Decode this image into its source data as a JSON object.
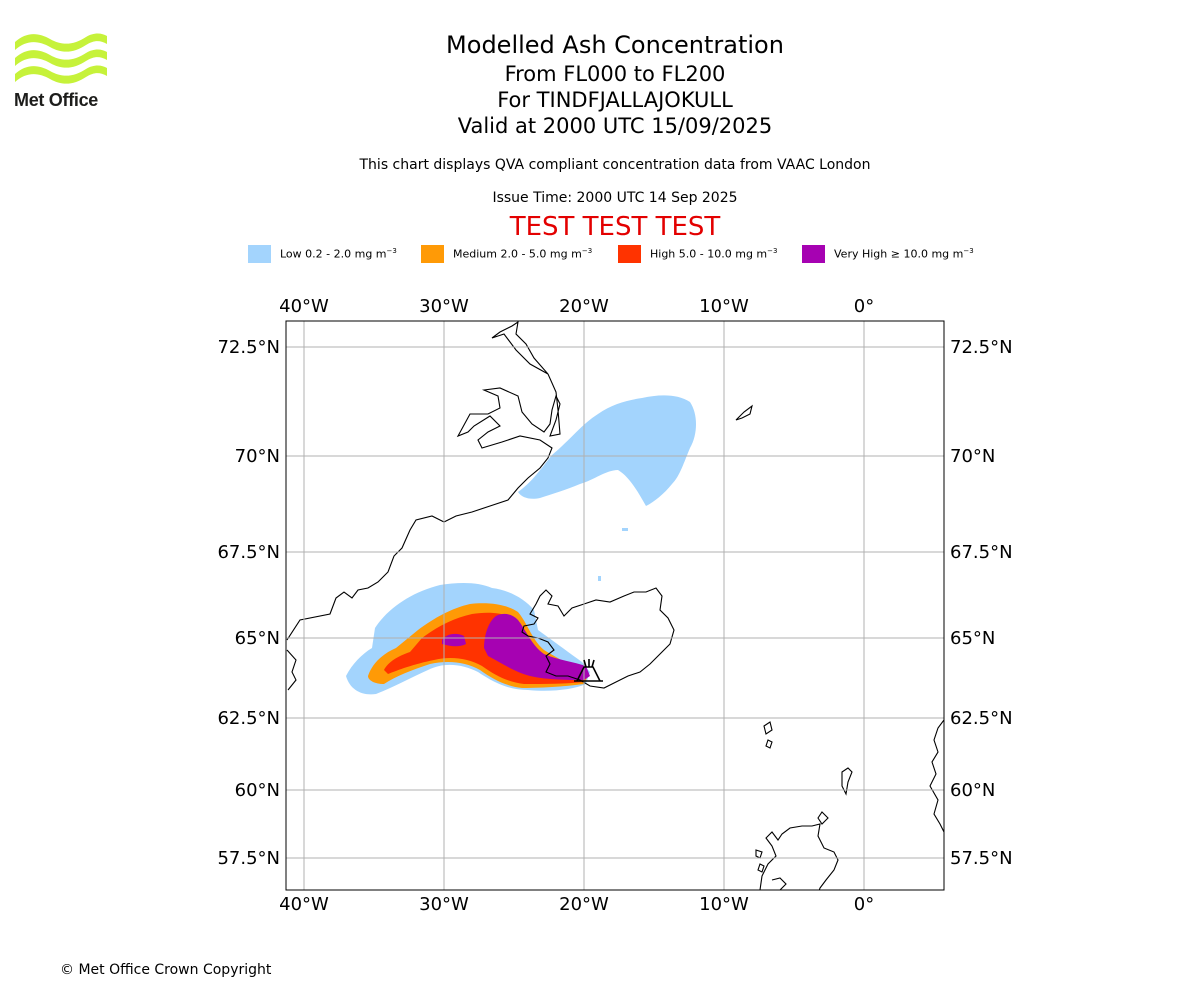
{
  "logo": {
    "text": "Met Office",
    "brand_color": "#c6f23a"
  },
  "title": {
    "main": "Modelled Ash Concentration",
    "levels": "From FL000 to FL200",
    "volcano": "For TINDFJALLAJOKULL",
    "valid": "Valid at 2000 UTC 15/09/2025"
  },
  "qva_note": "This chart displays QVA compliant concentration data from VAAC London",
  "issue_time": "Issue Time: 2000 UTC 14 Sep 2025",
  "test_banner": "TEST TEST TEST",
  "legend": [
    {
      "label": "Low 0.2 - 2.0 mg m",
      "color": "#a3d4fd"
    },
    {
      "label": "Medium 2.0 - 5.0 mg m",
      "color": "#ff9a06"
    },
    {
      "label": "High 5.0 - 10.0 mg m",
      "color": "#ff3300"
    },
    {
      "label": "Very High ≥ 10.0 mg m",
      "color": "#a602b2"
    }
  ],
  "legend_unit_exponent": "−3",
  "map": {
    "lon_labels": [
      "40°W",
      "30°W",
      "20°W",
      "10°W",
      "0°"
    ],
    "lat_labels": [
      "72.5°N",
      "70°N",
      "67.5°N",
      "65°N",
      "62.5°N",
      "60°N",
      "57.5°N"
    ],
    "extent": {
      "lon": [
        -41.2,
        5.8
      ],
      "lat": [
        56.6,
        72.8
      ]
    },
    "gridlines": true,
    "volcano_symbol": "volcano-icon"
  },
  "copyright": "© Met Office Crown Copyright"
}
